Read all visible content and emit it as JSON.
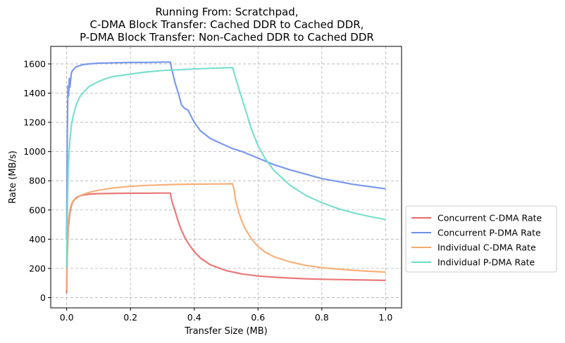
{
  "chart_data": {
    "type": "line",
    "title_lines": [
      "Running From: Scratchpad,",
      "C-DMA Block Transfer: Cached DDR to Cached DDR,",
      "P-DMA Block Transfer: Non-Cached DDR to Cached DDR"
    ],
    "xlabel": "Transfer Size (MB)",
    "ylabel": "Rate (MB/s)",
    "xlim": [
      -0.05,
      1.05
    ],
    "ylim": [
      -70,
      1720
    ],
    "x_ticks": [
      0.0,
      0.2,
      0.4,
      0.6,
      0.8,
      1.0
    ],
    "x_tick_labels": [
      "0.0",
      "0.2",
      "0.4",
      "0.6",
      "0.8",
      "1.0"
    ],
    "y_ticks": [
      0,
      200,
      400,
      600,
      800,
      1000,
      1200,
      1400,
      1600
    ],
    "y_tick_labels": [
      "0",
      "200",
      "400",
      "600",
      "800",
      "1000",
      "1200",
      "1400",
      "1600"
    ],
    "grid": true,
    "legend_position": "outside-right-bottom",
    "series": [
      {
        "name": "Concurrent C-DMA Rate",
        "color": "#e8696b",
        "x": [
          0.0,
          0.002,
          0.005,
          0.01,
          0.015,
          0.02,
          0.03,
          0.04,
          0.05,
          0.07,
          0.1,
          0.15,
          0.2,
          0.25,
          0.3,
          0.325,
          0.33,
          0.34,
          0.35,
          0.36,
          0.37,
          0.38,
          0.4,
          0.42,
          0.45,
          0.5,
          0.55,
          0.6,
          0.65,
          0.7,
          0.75,
          0.8,
          0.85,
          0.9,
          0.95,
          1.0
        ],
        "y": [
          30,
          300,
          480,
          580,
          630,
          660,
          685,
          695,
          702,
          708,
          712,
          714,
          715,
          715,
          716,
          716,
          660,
          590,
          520,
          460,
          415,
          375,
          315,
          270,
          225,
          185,
          162,
          148,
          140,
          134,
          129,
          126,
          124,
          122,
          120,
          118
        ]
      },
      {
        "name": "Concurrent P-DMA Rate",
        "color": "#6b8fe8",
        "x": [
          0.0,
          0.002,
          0.004,
          0.006,
          0.008,
          0.01,
          0.015,
          0.02,
          0.03,
          0.05,
          0.07,
          0.1,
          0.15,
          0.2,
          0.25,
          0.3,
          0.325,
          0.33,
          0.34,
          0.35,
          0.36,
          0.37,
          0.38,
          0.4,
          0.42,
          0.45,
          0.48,
          0.5,
          0.52,
          0.55,
          0.6,
          0.65,
          0.7,
          0.75,
          0.8,
          0.85,
          0.9,
          0.95,
          1.0
        ],
        "y": [
          400,
          1100,
          1450,
          1380,
          1500,
          1440,
          1540,
          1560,
          1580,
          1595,
          1600,
          1605,
          1608,
          1610,
          1610,
          1612,
          1612,
          1560,
          1470,
          1400,
          1320,
          1295,
          1285,
          1200,
          1140,
          1090,
          1060,
          1040,
          1020,
          1000,
          955,
          910,
          875,
          845,
          815,
          795,
          775,
          760,
          745
        ]
      },
      {
        "name": "Individual C-DMA Rate",
        "color": "#f5a96b",
        "x": [
          0.0,
          0.002,
          0.005,
          0.01,
          0.015,
          0.02,
          0.03,
          0.04,
          0.05,
          0.07,
          0.1,
          0.15,
          0.2,
          0.25,
          0.3,
          0.35,
          0.4,
          0.45,
          0.5,
          0.52,
          0.525,
          0.53,
          0.54,
          0.55,
          0.56,
          0.58,
          0.6,
          0.62,
          0.65,
          0.7,
          0.75,
          0.8,
          0.85,
          0.9,
          0.95,
          1.0
        ],
        "y": [
          50,
          350,
          520,
          600,
          640,
          660,
          680,
          695,
          705,
          720,
          735,
          752,
          762,
          768,
          772,
          775,
          777,
          778,
          779,
          780,
          740,
          660,
          580,
          520,
          470,
          400,
          350,
          315,
          280,
          245,
          220,
          205,
          195,
          187,
          180,
          175
        ]
      },
      {
        "name": "Individual P-DMA Rate",
        "color": "#6ddbc9",
        "x": [
          0.0,
          0.002,
          0.005,
          0.01,
          0.015,
          0.02,
          0.03,
          0.04,
          0.05,
          0.07,
          0.1,
          0.13,
          0.15,
          0.2,
          0.25,
          0.3,
          0.35,
          0.4,
          0.45,
          0.5,
          0.52,
          0.54,
          0.56,
          0.58,
          0.6,
          0.62,
          0.65,
          0.7,
          0.75,
          0.8,
          0.85,
          0.9,
          0.95,
          1.0
        ],
        "y": [
          200,
          600,
          900,
          1080,
          1180,
          1240,
          1320,
          1370,
          1400,
          1445,
          1480,
          1505,
          1515,
          1530,
          1545,
          1555,
          1560,
          1565,
          1570,
          1573,
          1575,
          1430,
          1290,
          1150,
          1040,
          960,
          870,
          770,
          700,
          650,
          610,
          580,
          555,
          535
        ]
      }
    ]
  }
}
